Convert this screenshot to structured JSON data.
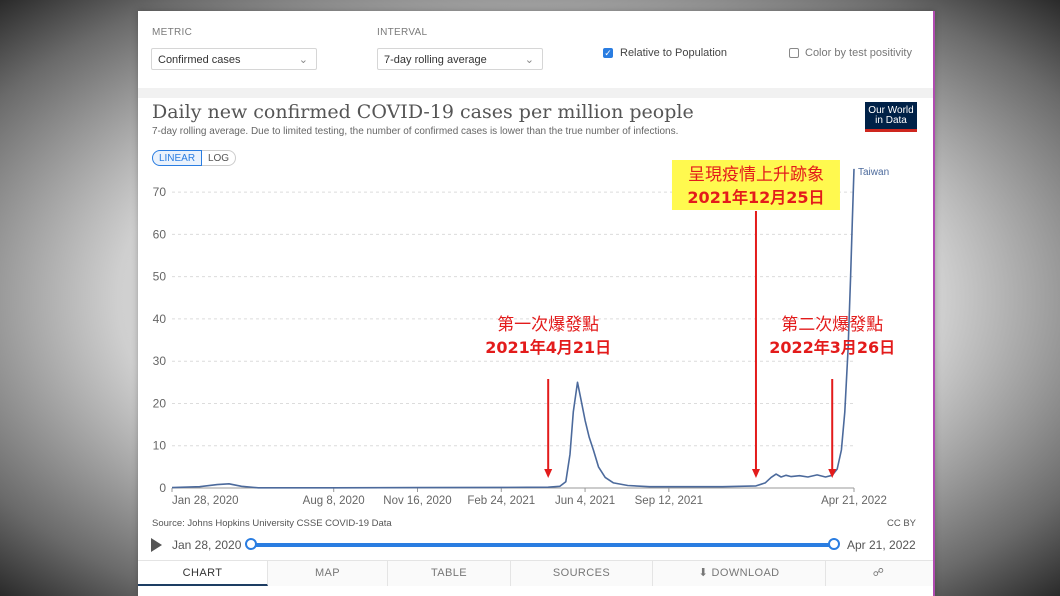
{
  "controls": {
    "metric_label": "METRIC",
    "metric_value": "Confirmed cases",
    "interval_label": "INTERVAL",
    "interval_value": "7-day rolling average",
    "relative_label": "Relative to Population",
    "relative_checked": true,
    "color_label": "Color by test positivity",
    "color_checked": false
  },
  "header": {
    "title": "Daily new confirmed COVID-19 cases per million people",
    "subtitle": "7-day rolling average. Due to limited testing, the number of confirmed cases is lower than the true number of infections.",
    "logo_line1": "Our World",
    "logo_line2": "in Data"
  },
  "scale_toggle": {
    "linear": "LINEAR",
    "log": "LOG",
    "selected": "LINEAR"
  },
  "chart_data": {
    "type": "line",
    "title": "Daily new confirmed COVID-19 cases per million people",
    "subtitle": "7-day rolling average. Due to limited testing, the number of confirmed cases is lower than the true number of infections.",
    "ylim": [
      0,
      75
    ],
    "y_ticks": [
      0,
      10,
      20,
      30,
      40,
      50,
      60,
      70
    ],
    "x_range": [
      "2020-01-28",
      "2022-04-21"
    ],
    "x_tick_labels": [
      {
        "date": "2020-01-28",
        "label": "Jan 28, 2020"
      },
      {
        "date": "2020-08-08",
        "label": "Aug 8, 2020"
      },
      {
        "date": "2020-11-16",
        "label": "Nov 16, 2020"
      },
      {
        "date": "2021-02-24",
        "label": "Feb 24, 2021"
      },
      {
        "date": "2021-06-04",
        "label": "Jun 4, 2021"
      },
      {
        "date": "2021-09-12",
        "label": "Sep 12, 2021"
      },
      {
        "date": "2022-04-21",
        "label": "Apr 21, 2022"
      }
    ],
    "grid": true,
    "series": [
      {
        "name": "Taiwan",
        "color": "#4c6a9c",
        "points": [
          [
            "2020-01-28",
            0.1
          ],
          [
            "2020-03-01",
            0.3
          ],
          [
            "2020-03-22",
            0.8
          ],
          [
            "2020-04-05",
            1.0
          ],
          [
            "2020-04-20",
            0.4
          ],
          [
            "2020-05-10",
            0.05
          ],
          [
            "2020-08-08",
            0.05
          ],
          [
            "2020-11-16",
            0.1
          ],
          [
            "2021-02-24",
            0.15
          ],
          [
            "2021-04-21",
            0.2
          ],
          [
            "2021-05-05",
            0.4
          ],
          [
            "2021-05-12",
            1.5
          ],
          [
            "2021-05-17",
            8
          ],
          [
            "2021-05-21",
            18
          ],
          [
            "2021-05-26",
            25
          ],
          [
            "2021-05-30",
            21
          ],
          [
            "2021-06-04",
            16
          ],
          [
            "2021-06-09",
            12
          ],
          [
            "2021-06-14",
            9
          ],
          [
            "2021-06-20",
            5
          ],
          [
            "2021-06-28",
            2.5
          ],
          [
            "2021-07-08",
            1.2
          ],
          [
            "2021-07-25",
            0.6
          ],
          [
            "2021-08-20",
            0.3
          ],
          [
            "2021-09-12",
            0.3
          ],
          [
            "2021-11-15",
            0.3
          ],
          [
            "2021-12-25",
            0.5
          ],
          [
            "2022-01-05",
            1.2
          ],
          [
            "2022-01-12",
            2.5
          ],
          [
            "2022-01-18",
            3.3
          ],
          [
            "2022-01-24",
            2.6
          ],
          [
            "2022-01-30",
            3.0
          ],
          [
            "2022-02-05",
            2.7
          ],
          [
            "2022-02-15",
            2.9
          ],
          [
            "2022-02-25",
            2.6
          ],
          [
            "2022-03-08",
            3.1
          ],
          [
            "2022-03-18",
            2.6
          ],
          [
            "2022-03-26",
            3.0
          ],
          [
            "2022-04-01",
            4.5
          ],
          [
            "2022-04-06",
            9
          ],
          [
            "2022-04-10",
            18
          ],
          [
            "2022-04-14",
            33
          ],
          [
            "2022-04-17",
            50
          ],
          [
            "2022-04-19",
            63
          ],
          [
            "2022-04-21",
            75.5
          ]
        ]
      }
    ],
    "annotations": [
      {
        "date": "2021-04-21",
        "line1": "第一次爆發點",
        "line2": "2021年4月21日",
        "box": false
      },
      {
        "date": "2021-12-25",
        "line1": "呈現疫情上升跡象",
        "line2": "2021年12月25日",
        "box": true
      },
      {
        "date": "2022-03-26",
        "line1": "第二次爆發點",
        "line2": "2022年3月26日",
        "box": false
      }
    ],
    "annotation_color": "#e31b1b",
    "highlight_box_color": "#fff94f"
  },
  "source": "Source: Johns Hopkins University CSSE COVID-19 Data",
  "license": "CC BY",
  "timeline": {
    "start": "Jan 28, 2020",
    "end": "Apr 21, 2022"
  },
  "tabs": [
    {
      "label": "CHART",
      "active": true
    },
    {
      "label": "MAP",
      "active": false
    },
    {
      "label": "TABLE",
      "active": false
    },
    {
      "label": "SOURCES",
      "active": false
    },
    {
      "label": "DOWNLOAD",
      "active": false
    },
    {
      "label": "",
      "active": false
    }
  ]
}
